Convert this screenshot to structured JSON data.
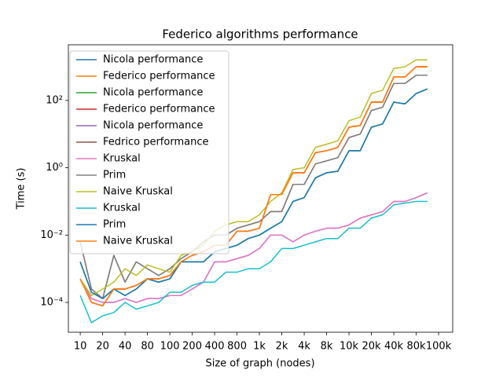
{
  "chart_data": {
    "type": "line",
    "title": "Federico algorithms performance",
    "x_label": "Size of graph (nodes)",
    "y_label": "Time (s)",
    "log_y": true,
    "legend": "upper left",
    "x": [
      0,
      0.5,
      1,
      1.5,
      2,
      2.5,
      3,
      3.5,
      4,
      4.5,
      5,
      5.5,
      6,
      6.5,
      7,
      7.5,
      8,
      8.5,
      9,
      9.5,
      10,
      10.5,
      11,
      11.5,
      12,
      12.5,
      13,
      13.5,
      14,
      14.5,
      15,
      15.5
    ],
    "xlim": [
      -0.53,
      16.63
    ],
    "xticks": [
      {
        "value": 0,
        "label": "10"
      },
      {
        "value": 1,
        "label": "20"
      },
      {
        "value": 2,
        "label": "40"
      },
      {
        "value": 3,
        "label": "80"
      },
      {
        "value": 4,
        "label": "100"
      },
      {
        "value": 5,
        "label": "200"
      },
      {
        "value": 6,
        "label": "400"
      },
      {
        "value": 7,
        "label": "800"
      },
      {
        "value": 8,
        "label": "1k"
      },
      {
        "value": 9,
        "label": "2k"
      },
      {
        "value": 10,
        "label": "4k"
      },
      {
        "value": 11,
        "label": "8k"
      },
      {
        "value": 12,
        "label": "10k"
      },
      {
        "value": 13,
        "label": "20k"
      },
      {
        "value": 14,
        "label": "40k"
      },
      {
        "value": 15,
        "label": "80k"
      },
      {
        "value": 16,
        "label": "100k"
      }
    ],
    "ylim": [
      1.3e-05,
      4500
    ],
    "yticks": [
      {
        "value": 0.0001,
        "label": "10⁻⁴"
      },
      {
        "value": 0.01,
        "label": "10⁻²"
      },
      {
        "value": 1,
        "label": "10⁰"
      },
      {
        "value": 100,
        "label": "10²"
      }
    ],
    "series": [
      {
        "name": "Nicola performance",
        "color": "#1f77b4",
        "values": [
          0.0016,
          0.0002,
          0.00013,
          0.00025,
          0.00016,
          0.00025,
          0.0005,
          0.0004,
          0.0005,
          0.0016,
          0.0016,
          0.0016,
          0.0032,
          0.004,
          0.005,
          0.0079,
          0.01,
          0.016,
          0.025,
          0.1,
          0.13,
          0.5,
          0.71,
          0.79,
          3.2,
          3.2,
          16,
          20,
          89,
          79,
          160,
          220
        ]
      },
      {
        "name": "Federico performance",
        "color": "#ff7f0e",
        "values": [
          0.0005,
          0.0001,
          7.9e-05,
          0.00025,
          0.00025,
          0.00032,
          0.0005,
          0.0005,
          0.00063,
          0.0016,
          0.0025,
          0.0032,
          0.005,
          0.005,
          0.013,
          0.013,
          0.016,
          0.16,
          0.16,
          0.71,
          0.71,
          2.8,
          3.2,
          4,
          16,
          18,
          89,
          89,
          500,
          500,
          1000,
          1000
        ]
      },
      {
        "name": "Nicola performance",
        "color": "#2ca02c",
        "values": [
          0.0016,
          0.0002,
          0.00013,
          0.00025,
          0.00016,
          0.00025,
          0.0005,
          0.0004,
          0.0005,
          0.0016,
          0.0016,
          0.0016,
          0.0032,
          0.004,
          0.005,
          0.0079,
          0.01,
          0.016,
          0.025,
          0.1,
          0.13,
          0.5,
          0.71,
          0.79,
          3.2,
          3.2,
          16,
          20,
          89,
          79,
          160,
          220
        ]
      },
      {
        "name": "Federico performance",
        "color": "#d62728",
        "values": [
          0.0005,
          0.0001,
          7.9e-05,
          0.00025,
          0.00025,
          0.00032,
          0.0005,
          0.0005,
          0.00063,
          0.0016,
          0.0025,
          0.0032,
          0.005,
          0.005,
          0.013,
          0.013,
          0.016,
          0.16,
          0.16,
          0.71,
          0.71,
          2.8,
          3.2,
          4,
          16,
          18,
          89,
          89,
          500,
          500,
          1000,
          1000
        ]
      },
      {
        "name": "Nicola performance",
        "color": "#9467bd",
        "values": [
          0.0005,
          0.00013,
          0.0001,
          0.0001,
          0.00013,
          0.0001,
          0.00013,
          0.00013,
          0.00016,
          0.00016,
          0.00025,
          0.0004,
          0.0016,
          0.0016,
          0.002,
          0.0025,
          0.004,
          0.01,
          0.01,
          0.0063,
          0.01,
          0.013,
          0.016,
          0.016,
          0.02,
          0.032,
          0.04,
          0.05,
          0.1,
          0.1,
          0.13,
          0.18
        ]
      },
      {
        "name": "Fedrico performance",
        "color": "#8c564b",
        "values": [
          0.0063,
          0.00025,
          0.00013,
          0.0025,
          0.0004,
          0.0016,
          0.001,
          0.00063,
          0.001,
          0.002,
          0.0032,
          0.0063,
          0.01,
          0.01,
          0.016,
          0.02,
          0.025,
          0.05,
          0.05,
          0.32,
          0.32,
          1.3,
          1.6,
          2,
          7.9,
          10,
          50,
          63,
          320,
          320,
          560,
          560
        ]
      },
      {
        "name": "Kruskal",
        "color": "#e377c2",
        "values": [
          0.0005,
          0.00013,
          0.0001,
          0.0001,
          0.00013,
          0.0001,
          0.00013,
          0.00013,
          0.00016,
          0.00016,
          0.00025,
          0.0004,
          0.0016,
          0.0016,
          0.002,
          0.0025,
          0.004,
          0.01,
          0.01,
          0.0063,
          0.01,
          0.013,
          0.016,
          0.016,
          0.02,
          0.032,
          0.04,
          0.05,
          0.1,
          0.1,
          0.13,
          0.18
        ]
      },
      {
        "name": "Prim",
        "color": "#7f7f7f",
        "values": [
          0.0063,
          0.00025,
          0.00013,
          0.0025,
          0.0004,
          0.0016,
          0.001,
          0.00063,
          0.001,
          0.002,
          0.0032,
          0.0063,
          0.01,
          0.01,
          0.016,
          0.02,
          0.025,
          0.05,
          0.05,
          0.32,
          0.32,
          1.3,
          1.6,
          2,
          7.9,
          10,
          50,
          63,
          320,
          320,
          560,
          560
        ]
      },
      {
        "name": "Naive Kruskal",
        "color": "#bcbd22",
        "values": [
          0.0005,
          0.00016,
          0.00025,
          0.0004,
          0.001,
          0.00063,
          0.0013,
          0.001,
          0.00079,
          0.0025,
          0.0032,
          0.005,
          0.013,
          0.02,
          0.025,
          0.025,
          0.04,
          0.1,
          0.18,
          0.89,
          1,
          4,
          5,
          6.3,
          25,
          32,
          160,
          200,
          890,
          1000,
          1600,
          1600
        ]
      },
      {
        "name": "Kruskal",
        "color": "#17becf",
        "values": [
          0.00016,
          2.5e-05,
          4e-05,
          5e-05,
          0.0001,
          6.3e-05,
          7.9e-05,
          0.0001,
          0.0002,
          0.0002,
          0.00032,
          0.0004,
          0.0004,
          0.00079,
          0.00079,
          0.001,
          0.001,
          0.0016,
          0.004,
          0.004,
          0.005,
          0.0063,
          0.0079,
          0.0079,
          0.016,
          0.016,
          0.032,
          0.04,
          0.079,
          0.089,
          0.1,
          0.1
        ]
      },
      {
        "name": "Prim",
        "color": "#1f77b4",
        "values": [
          0.0016,
          0.0002,
          0.00013,
          0.00025,
          0.00016,
          0.00025,
          0.0005,
          0.0004,
          0.0005,
          0.0016,
          0.0016,
          0.0016,
          0.0032,
          0.004,
          0.005,
          0.0079,
          0.01,
          0.016,
          0.025,
          0.1,
          0.13,
          0.5,
          0.71,
          0.79,
          3.2,
          3.2,
          16,
          20,
          89,
          79,
          160,
          220
        ]
      },
      {
        "name": "Naive Kruskal",
        "color": "#ff7f0e",
        "values": [
          0.0005,
          0.0001,
          7.9e-05,
          0.00025,
          0.00025,
          0.00032,
          0.0005,
          0.0005,
          0.00063,
          0.0016,
          0.0025,
          0.0032,
          0.005,
          0.005,
          0.013,
          0.013,
          0.016,
          0.16,
          0.16,
          0.71,
          0.71,
          2.8,
          3.2,
          4,
          16,
          18,
          89,
          89,
          500,
          500,
          1000,
          1000
        ]
      }
    ]
  }
}
